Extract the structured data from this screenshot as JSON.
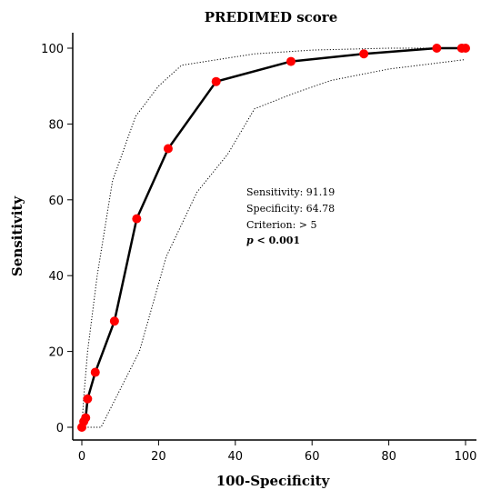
{
  "chart_data": {
    "type": "line",
    "title": "PREDIMED score",
    "xlabel": "100-Specificity",
    "ylabel": "Sensitivity",
    "xlim": [
      0,
      100
    ],
    "ylim": [
      0,
      100
    ],
    "x_ticks": [
      0,
      20,
      40,
      60,
      80,
      100
    ],
    "y_ticks": [
      0,
      20,
      40,
      60,
      80,
      100
    ],
    "grid": false,
    "series": [
      {
        "role": "roc",
        "color": "#000000",
        "marker_color": "#ff0000",
        "x": [
          0,
          0.5,
          1,
          1.5,
          3.5,
          8.5,
          14.3,
          22.5,
          35.0,
          54.5,
          73.5,
          92.5,
          99.0,
          100
        ],
        "y": [
          0,
          1.5,
          2.5,
          7.5,
          14.5,
          28.0,
          55.0,
          73.5,
          91.2,
          96.5,
          98.5,
          100,
          100,
          100
        ]
      },
      {
        "role": "ci-upper",
        "color": "#000000",
        "x": [
          0,
          0.5,
          1.5,
          4,
          8,
          14,
          20,
          26,
          45,
          60,
          80,
          100
        ],
        "y": [
          0,
          8,
          20,
          40,
          65,
          82,
          90,
          95.5,
          98.5,
          99.5,
          100,
          100
        ]
      },
      {
        "role": "ci-lower",
        "color": "#000000",
        "x": [
          0,
          5,
          8.5,
          15,
          22,
          30,
          38,
          45,
          55,
          65,
          80,
          100
        ],
        "y": [
          0,
          0,
          7,
          20,
          45,
          62,
          72,
          84,
          88,
          91.5,
          94.5,
          97
        ]
      }
    ],
    "annotations": {
      "sensitivity": "Sensitivity: 91.19",
      "specificity": "Specificity: 64.78",
      "criterion": "Criterion: > 5",
      "p_symbol": "p",
      "p_rest": " < 0.001"
    }
  }
}
